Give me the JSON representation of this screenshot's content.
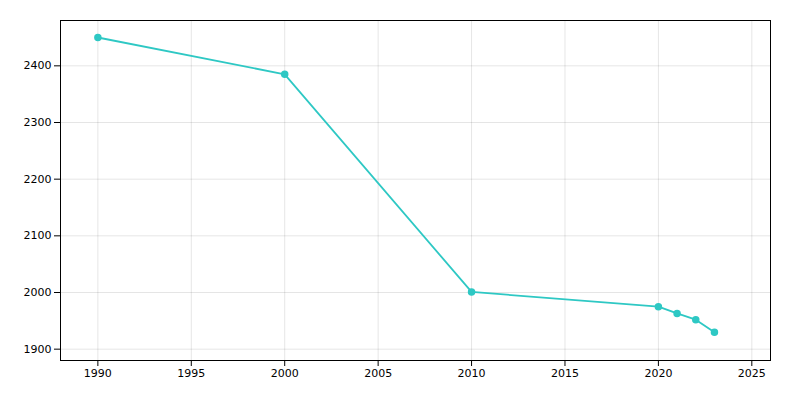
{
  "chart_data": {
    "type": "line",
    "x": [
      1990,
      2000,
      2010,
      2020,
      2021,
      2022,
      2023
    ],
    "values": [
      2450,
      2385,
      2001,
      1975,
      1963,
      1952,
      1930
    ],
    "color": "#2ec8c4",
    "marker": "circle",
    "xlim": [
      1988,
      2026
    ],
    "ylim": [
      1880,
      2480
    ],
    "xticks": [
      1990,
      1995,
      2000,
      2005,
      2010,
      2015,
      2020,
      2025
    ],
    "yticks": [
      1900,
      2000,
      2100,
      2200,
      2300,
      2400
    ],
    "grid": true
  }
}
